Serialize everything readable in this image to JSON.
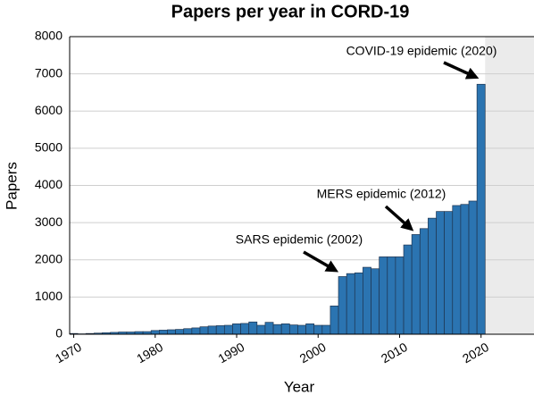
{
  "chart_data": {
    "type": "bar",
    "title": "Papers per year in CORD-19",
    "x_label": "Year",
    "y_label": "Papers",
    "x": [
      1970,
      1971,
      1972,
      1973,
      1974,
      1975,
      1976,
      1977,
      1978,
      1979,
      1980,
      1981,
      1982,
      1983,
      1984,
      1985,
      1986,
      1987,
      1988,
      1989,
      1990,
      1991,
      1992,
      1993,
      1994,
      1995,
      1996,
      1997,
      1998,
      1999,
      2000,
      2001,
      2002,
      2003,
      2004,
      2005,
      2006,
      2007,
      2008,
      2009,
      2010,
      2011,
      2012,
      2013,
      2014,
      2015,
      2016,
      2017,
      2018,
      2019,
      2020
    ],
    "values": [
      20,
      10,
      20,
      30,
      40,
      50,
      60,
      60,
      70,
      70,
      100,
      110,
      120,
      130,
      150,
      170,
      200,
      220,
      230,
      240,
      280,
      290,
      330,
      240,
      320,
      260,
      280,
      250,
      240,
      280,
      240,
      240,
      760,
      1550,
      1630,
      1650,
      1800,
      1760,
      2080,
      2080,
      2080,
      2400,
      2680,
      2840,
      3120,
      3300,
      3300,
      3460,
      3490,
      3580,
      6720
    ],
    "color": "#2b74b1",
    "xlim": [
      1969.5,
      2026.5
    ],
    "xticks": [
      1970,
      1980,
      1990,
      2000,
      2010,
      2020
    ],
    "ylim": [
      0,
      8000
    ],
    "yticks": [
      0,
      1000,
      2000,
      3000,
      4000,
      5000,
      6000,
      7000,
      8000
    ],
    "grid": true,
    "shaded_region": [
      2020.5,
      2026.5
    ],
    "annotations": [
      "COVID-19 epidemic (2020)",
      "MERS epidemic (2012)",
      "SARS epidemic (2002)"
    ]
  }
}
